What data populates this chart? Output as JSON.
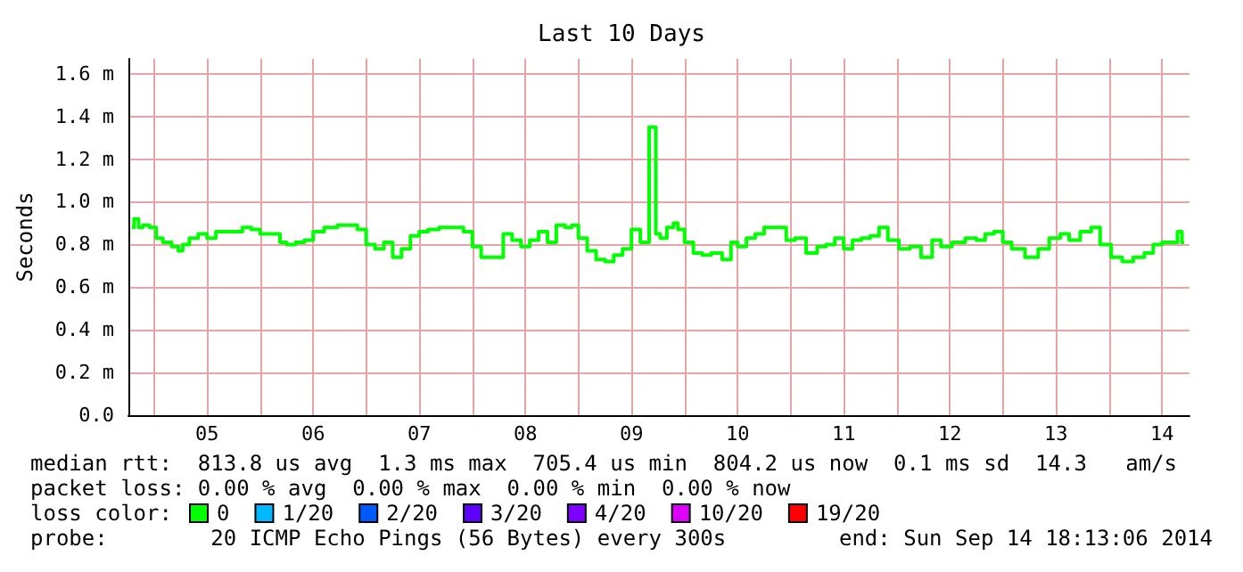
{
  "chart_data": {
    "type": "step",
    "title": "Last 10 Days",
    "ylabel": "Seconds",
    "xlim": [
      "2014-09-04T18:13",
      "2014-09-14T18:13"
    ],
    "xticks": [
      {
        "value": "2014-09-05T00:00",
        "label": null
      },
      {
        "value": "2014-09-05T12:00",
        "label": "05"
      },
      {
        "value": "2014-09-06T00:00",
        "label": null
      },
      {
        "value": "2014-09-06T12:00",
        "label": "06"
      },
      {
        "value": "2014-09-07T00:00",
        "label": null
      },
      {
        "value": "2014-09-07T12:00",
        "label": "07"
      },
      {
        "value": "2014-09-08T00:00",
        "label": null
      },
      {
        "value": "2014-09-08T12:00",
        "label": "08"
      },
      {
        "value": "2014-09-09T00:00",
        "label": null
      },
      {
        "value": "2014-09-09T12:00",
        "label": "09"
      },
      {
        "value": "2014-09-10T00:00",
        "label": null
      },
      {
        "value": "2014-09-10T12:00",
        "label": "10"
      },
      {
        "value": "2014-09-11T00:00",
        "label": null
      },
      {
        "value": "2014-09-11T12:00",
        "label": "11"
      },
      {
        "value": "2014-09-12T00:00",
        "label": null
      },
      {
        "value": "2014-09-12T12:00",
        "label": "12"
      },
      {
        "value": "2014-09-13T00:00",
        "label": null
      },
      {
        "value": "2014-09-13T12:00",
        "label": "13"
      },
      {
        "value": "2014-09-14T00:00",
        "label": null
      },
      {
        "value": "2014-09-14T12:00",
        "label": "14"
      }
    ],
    "ylim": [
      0,
      1.67
    ],
    "yticks": [
      {
        "value": 0,
        "label": "0.0"
      },
      {
        "value": 0.2,
        "label": "0.2 m"
      },
      {
        "value": 0.4,
        "label": "0.4 m"
      },
      {
        "value": 0.6,
        "label": "0.6 m"
      },
      {
        "value": 0.8,
        "label": "0.8 m"
      },
      {
        "value": 1.0,
        "label": "1.0 m"
      },
      {
        "value": 1.2,
        "label": "1.2 m"
      },
      {
        "value": 1.4,
        "label": "1.4 m"
      },
      {
        "value": 1.6,
        "label": "1.6 m"
      }
    ],
    "grid": true,
    "marker": "none",
    "legend": "bottom",
    "legend_title": "loss color:",
    "series": [
      {
        "name": "0",
        "color": "#00ff00",
        "x": [
          "2014-09-04T19:00",
          "2014-09-04T20:00",
          "2014-09-04T21:00",
          "2014-09-04T22:00",
          "2014-09-05T00:00",
          "2014-09-05T01:00",
          "2014-09-05T03:00",
          "2014-09-05T05:00",
          "2014-09-05T06:00",
          "2014-09-05T07:00",
          "2014-09-05T09:00",
          "2014-09-05T11:00",
          "2014-09-05T13:00",
          "2014-09-05T15:00",
          "2014-09-05T17:00",
          "2014-09-05T19:00",
          "2014-09-05T21:00",
          "2014-09-05T23:00",
          "2014-09-06T01:00",
          "2014-09-06T04:00",
          "2014-09-06T05:00",
          "2014-09-06T07:00",
          "2014-09-06T09:00",
          "2014-09-06T11:00",
          "2014-09-06T13:00",
          "2014-09-06T16:00",
          "2014-09-06T19:00",
          "2014-09-06T21:00",
          "2014-09-06T23:00",
          "2014-09-07T01:00",
          "2014-09-07T03:00",
          "2014-09-07T05:00",
          "2014-09-07T07:00",
          "2014-09-07T09:00",
          "2014-09-07T11:00",
          "2014-09-07T13:00",
          "2014-09-07T15:00",
          "2014-09-07T18:00",
          "2014-09-07T21:00",
          "2014-09-07T23:00",
          "2014-09-08T01:00",
          "2014-09-08T03:00",
          "2014-09-08T06:00",
          "2014-09-08T08:00",
          "2014-09-08T10:00",
          "2014-09-08T12:00",
          "2014-09-08T14:00",
          "2014-09-08T16:00",
          "2014-09-08T18:00",
          "2014-09-08T20:00",
          "2014-09-08T22:00",
          "2014-09-08T23:00",
          "2014-09-09T01:00",
          "2014-09-09T03:00",
          "2014-09-09T05:00",
          "2014-09-09T07:00",
          "2014-09-09T09:00",
          "2014-09-09T11:00",
          "2014-09-09T13:00",
          "2014-09-09T15:00",
          "2014-09-09T17:00",
          "2014-09-09T18:00",
          "2014-09-09T19:00",
          "2014-09-09T21:00",
          "2014-09-09T22:00",
          "2014-09-09T23:00",
          "2014-09-10T01:00",
          "2014-09-10T03:00",
          "2014-09-10T05:00",
          "2014-09-10T07:00",
          "2014-09-10T10:00",
          "2014-09-10T11:00",
          "2014-09-10T13:00",
          "2014-09-10T15:00",
          "2014-09-10T17:00",
          "2014-09-10T19:00",
          "2014-09-10T22:00",
          "2014-09-11T00:00",
          "2014-09-11T02:00",
          "2014-09-11T05:00",
          "2014-09-11T07:00",
          "2014-09-11T09:00",
          "2014-09-11T11:00",
          "2014-09-11T13:00",
          "2014-09-11T15:00",
          "2014-09-11T17:00",
          "2014-09-11T19:00",
          "2014-09-11T21:00",
          "2014-09-11T23:00",
          "2014-09-12T02:00",
          "2014-09-12T04:00",
          "2014-09-12T07:00",
          "2014-09-12T09:00",
          "2014-09-12T11:00",
          "2014-09-12T14:00",
          "2014-09-12T17:00",
          "2014-09-12T19:00",
          "2014-09-12T21:00",
          "2014-09-12T23:00",
          "2014-09-13T01:00",
          "2014-09-13T03:00",
          "2014-09-13T07:00",
          "2014-09-13T09:00",
          "2014-09-13T12:00",
          "2014-09-13T14:00",
          "2014-09-13T16:00",
          "2014-09-13T19:00",
          "2014-09-13T21:00",
          "2014-09-13T23:00",
          "2014-09-14T02:00",
          "2014-09-14T04:00",
          "2014-09-14T07:00",
          "2014-09-14T09:00",
          "2014-09-14T11:00",
          "2014-09-14T13:00",
          "2014-09-14T15:00",
          "2014-09-14T16:00",
          "2014-09-14T17:00"
        ],
        "values": [
          0.88,
          0.92,
          0.88,
          0.89,
          0.88,
          0.83,
          0.81,
          0.79,
          0.77,
          0.8,
          0.83,
          0.85,
          0.83,
          0.86,
          0.86,
          0.86,
          0.88,
          0.87,
          0.85,
          0.85,
          0.81,
          0.8,
          0.81,
          0.82,
          0.86,
          0.88,
          0.89,
          0.89,
          0.87,
          0.8,
          0.78,
          0.81,
          0.74,
          0.78,
          0.84,
          0.86,
          0.87,
          0.88,
          0.88,
          0.86,
          0.79,
          0.74,
          0.74,
          0.85,
          0.82,
          0.79,
          0.82,
          0.86,
          0.81,
          0.89,
          0.88,
          0.89,
          0.83,
          0.77,
          0.73,
          0.72,
          0.75,
          0.78,
          0.87,
          0.81,
          1.35,
          0.85,
          0.83,
          0.88,
          0.9,
          0.87,
          0.81,
          0.76,
          0.75,
          0.76,
          0.73,
          0.81,
          0.79,
          0.83,
          0.85,
          0.88,
          0.88,
          0.82,
          0.83,
          0.76,
          0.79,
          0.8,
          0.83,
          0.78,
          0.82,
          0.83,
          0.84,
          0.88,
          0.82,
          0.78,
          0.79,
          0.74,
          0.82,
          0.79,
          0.81,
          0.83,
          0.82,
          0.85,
          0.86,
          0.81,
          0.78,
          0.74,
          0.78,
          0.83,
          0.85,
          0.82,
          0.86,
          0.88,
          0.8,
          0.74,
          0.72,
          0.74,
          0.76,
          0.8,
          0.81,
          0.81,
          0.86,
          0.81
        ]
      },
      {
        "name": "1/20",
        "color": "#00b8ff"
      },
      {
        "name": "2/20",
        "color": "#0059ff"
      },
      {
        "name": "3/20",
        "color": "#5e00ff"
      },
      {
        "name": "4/20",
        "color": "#7e00ff"
      },
      {
        "name": "10/20",
        "color": "#dd00ff"
      },
      {
        "name": "19/20",
        "color": "#ff0000"
      }
    ],
    "annotations": [
      "median rtt:  813.8 us avg  1.3 ms max  705.4 us min  804.2 us now  0.1 ms sd  14.3   am/s",
      "packet loss: 0.00 % avg  0.00 % max  0.00 % min  0.00 % now",
      "probe:        20 ICMP Echo Pings (56 Bytes) every 300s",
      "end: Sun Sep 14 18:13:06 2014"
    ]
  }
}
